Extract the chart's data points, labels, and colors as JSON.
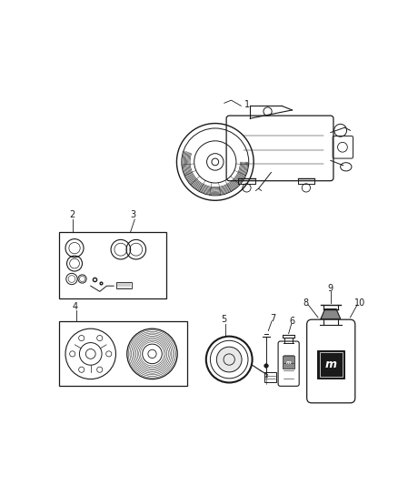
{
  "background_color": "#ffffff",
  "dark": "#1a1a1a",
  "gray": "#666666",
  "light_gray": "#cccccc",
  "fig_width": 4.38,
  "fig_height": 5.33,
  "dpi": 100
}
